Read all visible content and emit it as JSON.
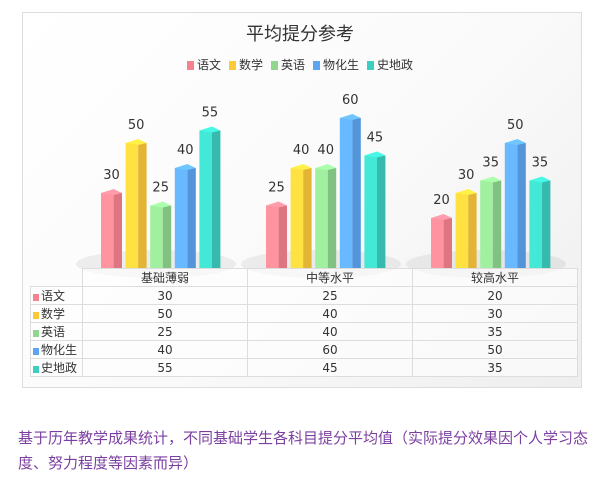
{
  "chart_data": {
    "type": "bar",
    "title": "平均提分参考",
    "categories": [
      "基础薄弱",
      "中等水平",
      "较高水平"
    ],
    "series": [
      {
        "name": "语文",
        "color": "#f5838f",
        "values": [
          30,
          25,
          20
        ]
      },
      {
        "name": "数学",
        "color": "#fcc93a",
        "values": [
          50,
          40,
          30
        ]
      },
      {
        "name": "英语",
        "color": "#8fd68f",
        "values": [
          25,
          40,
          35
        ]
      },
      {
        "name": "物化生",
        "color": "#5da5f2",
        "values": [
          40,
          60,
          50
        ]
      },
      {
        "name": "史地政",
        "color": "#3ccfc0",
        "values": [
          55,
          45,
          35
        ]
      }
    ],
    "ylim": [
      0,
      60
    ],
    "legend": "top",
    "grid": false
  },
  "caption": "基于历年教学成果统计，不同基础学生各科目提分平均值（实际提分效果因个人学习态度、努力程度等因素而异）"
}
